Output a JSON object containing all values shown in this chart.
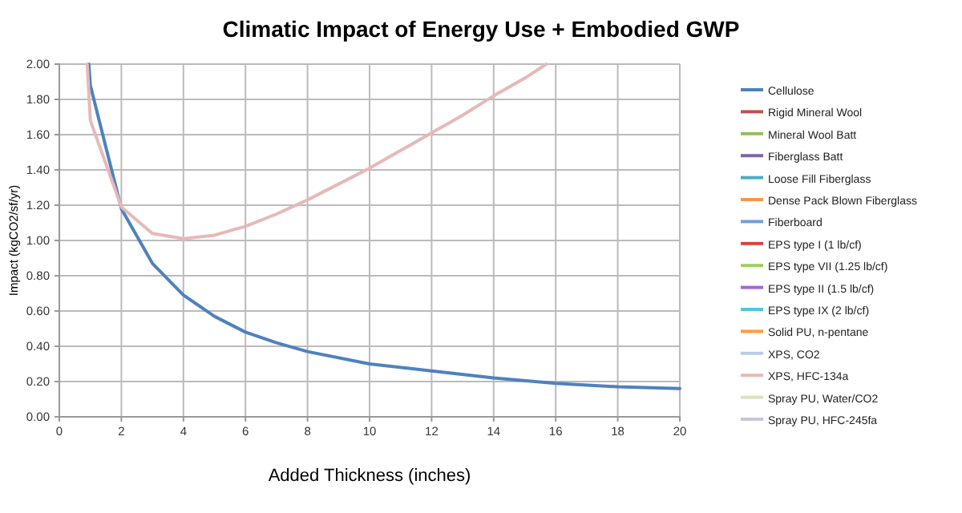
{
  "chart_data": {
    "type": "line",
    "title": "Climatic Impact of Energy Use + Embodied GWP",
    "xlabel": "Added Thickness (inches)",
    "ylabel": "Impact  (kgCO2/sf/yr)",
    "xlim": [
      0,
      20
    ],
    "xticks": [
      0,
      2,
      4,
      6,
      8,
      10,
      12,
      14,
      16,
      18,
      20
    ],
    "ylim": [
      0,
      2
    ],
    "yticks": [
      {
        "value": 0,
        "label": "0.00"
      },
      {
        "value": 0.2,
        "label": "0.20"
      },
      {
        "value": 0.4,
        "label": "0.40"
      },
      {
        "value": 0.6,
        "label": "0.60"
      },
      {
        "value": 0.8,
        "label": "0.80"
      },
      {
        "value": 1,
        "label": "1.00"
      },
      {
        "value": 1.2,
        "label": "1.20"
      },
      {
        "value": 1.4,
        "label": "1.40"
      },
      {
        "value": 1.6,
        "label": "1.60"
      },
      {
        "value": 1.8,
        "label": "1.80"
      },
      {
        "value": 2,
        "label": "2.00"
      }
    ],
    "grid": true,
    "legend": "right",
    "marker": "none",
    "line_style": "solid",
    "series": [
      {
        "name": "Cellulose",
        "color": "#4f81bd",
        "x": [
          0.95,
          1,
          2,
          3,
          4,
          5,
          6,
          7,
          8,
          10,
          12,
          14,
          16,
          18,
          20
        ],
        "values": [
          2.0,
          1.88,
          1.18,
          0.87,
          0.69,
          0.57,
          0.48,
          0.42,
          0.37,
          0.3,
          0.26,
          0.22,
          0.19,
          0.17,
          0.16
        ]
      },
      {
        "name": "Rigid Mineral Wool",
        "color": "#c0504d"
      },
      {
        "name": "Mineral Wool Batt",
        "color": "#9bbb59"
      },
      {
        "name": "Fiberglass Batt",
        "color": "#8064a2"
      },
      {
        "name": "Loose Fill Fiberglass",
        "color": "#4bacc6"
      },
      {
        "name": "Dense Pack Blown Fiberglass",
        "color": "#f79646"
      },
      {
        "name": "Fiberboard",
        "color": "#6f9fdb"
      },
      {
        "name": "EPS type I (1 lb/cf)",
        "color": "#e0403c"
      },
      {
        "name": "EPS type VII (1.25 lb/cf)",
        "color": "#9ed15a"
      },
      {
        "name": "EPS type II (1.5 lb/cf)",
        "color": "#9a6ccf"
      },
      {
        "name": "EPS type IX (2 lb/cf)",
        "color": "#4fc6e0"
      },
      {
        "name": "Solid PU, n-pentane",
        "color": "#ff9c3c"
      },
      {
        "name": "XPS, CO2",
        "color": "#b9cde5"
      },
      {
        "name": "XPS, HFC-134a",
        "color": "#e6b9b8",
        "x": [
          0.9,
          1,
          2,
          3,
          4,
          5,
          6,
          7,
          8,
          9,
          10,
          11,
          12,
          13,
          14,
          15,
          15.7
        ],
        "values": [
          2.0,
          1.68,
          1.19,
          1.04,
          1.01,
          1.03,
          1.08,
          1.15,
          1.23,
          1.32,
          1.41,
          1.51,
          1.61,
          1.71,
          1.82,
          1.92,
          2.0
        ]
      },
      {
        "name": "Spray PU, Water/CO2",
        "color": "#d7e4bd"
      },
      {
        "name": "Spray PU, HFC-245fa",
        "color": "#ccc1da"
      }
    ]
  }
}
